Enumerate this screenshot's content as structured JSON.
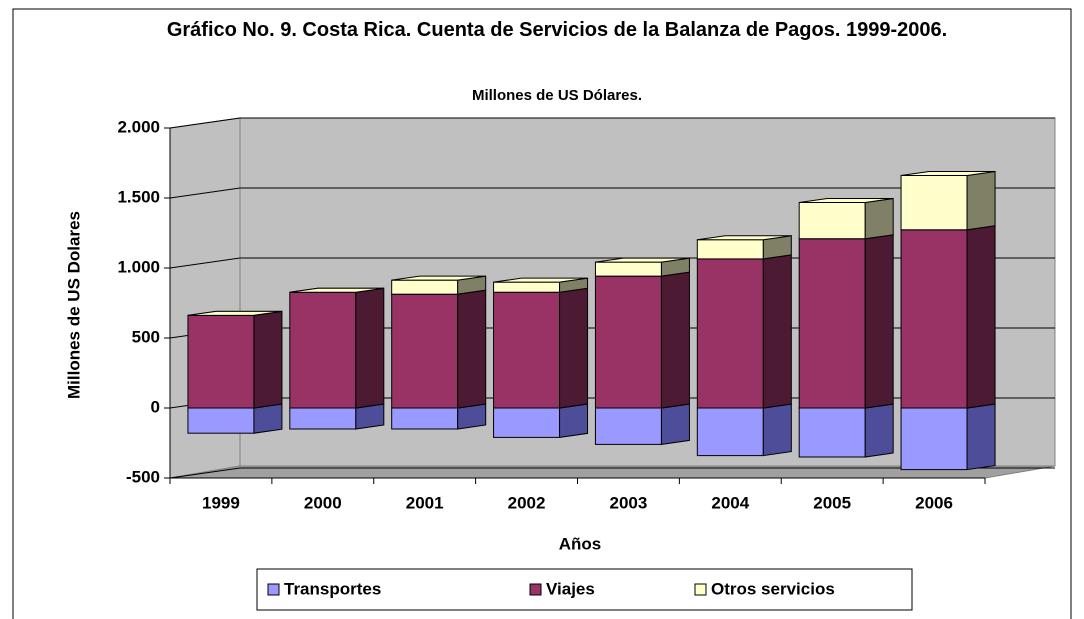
{
  "chart_data": {
    "type": "bar3d_stacked",
    "title": "Gráfico No. 9. Costa Rica. Cuenta de Servicios de la Balanza de Pagos. 1999-2006.",
    "subtitle": "Millones de US Dólares.",
    "x_label": "Años",
    "y_label": "Millones de US Dolares",
    "categories": [
      "1999",
      "2000",
      "2001",
      "2002",
      "2003",
      "2004",
      "2005",
      "2006"
    ],
    "series": [
      {
        "name": "Transportes",
        "color": "#9999ff",
        "side_color": "#4d4d99",
        "values": [
          -180,
          -150,
          -150,
          -210,
          -260,
          -340,
          -350,
          -440
        ]
      },
      {
        "name": "Viajes",
        "color": "#993366",
        "side_color": "#4d1a33",
        "values": [
          662,
          827,
          813,
          827,
          942,
          1065,
          1209,
          1273
        ]
      },
      {
        "name": "Otros servicios",
        "color": "#ffffcc",
        "side_color": "#808066",
        "values": [
          0,
          0,
          100,
          72,
          100,
          137,
          259,
          388
        ]
      }
    ],
    "ylim": [
      -500,
      2000
    ],
    "yticks": [
      {
        "value": -500,
        "label": "-500"
      },
      0,
      500,
      {
        "value": 1000,
        "label": "1.000"
      },
      {
        "value": 1500,
        "label": "1.500"
      },
      {
        "value": 2000,
        "label": "2.000"
      }
    ],
    "grid": true,
    "legend": "bottom"
  }
}
